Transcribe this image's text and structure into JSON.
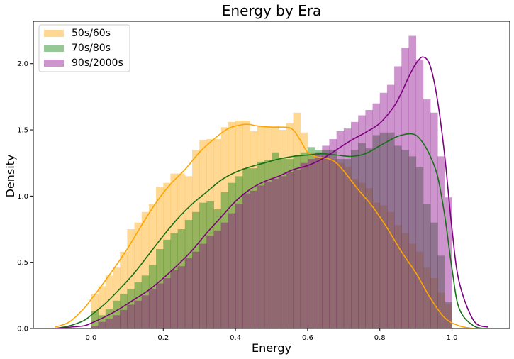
{
  "chart_data": {
    "type": "bar",
    "title": "Energy by Era",
    "xlabel": "Energy",
    "ylabel": "Density",
    "xlim": [
      -0.16,
      1.16
    ],
    "ylim": [
      0,
      2.32
    ],
    "xticks": [
      0.0,
      0.2,
      0.4,
      0.6,
      0.8,
      1.0
    ],
    "xtick_labels": [
      "0.0",
      "0.2",
      "0.4",
      "0.6",
      "0.8",
      "1.0"
    ],
    "yticks": [
      0.0,
      0.5,
      1.0,
      1.5,
      2.0
    ],
    "ytick_labels": [
      "0.0",
      "0.5",
      "1.0",
      "1.5",
      "2.0"
    ],
    "grid": false,
    "legend_position": "top-left",
    "bin_width": 0.02,
    "x_start": 0.0,
    "series": [
      {
        "name": "50s/60s",
        "color": "#ffa500",
        "fill_opacity": 0.42,
        "hist_values": [
          0.26,
          0.32,
          0.4,
          0.46,
          0.58,
          0.75,
          0.8,
          0.88,
          0.94,
          1.07,
          1.1,
          1.17,
          1.17,
          1.15,
          1.35,
          1.42,
          1.43,
          1.43,
          1.52,
          1.56,
          1.57,
          1.57,
          1.49,
          1.53,
          1.53,
          1.53,
          1.5,
          1.55,
          1.63,
          1.48,
          1.33,
          1.3,
          1.3,
          1.28,
          1.25,
          1.22,
          1.13,
          1.1,
          1.06,
          0.95,
          0.93,
          0.88,
          0.78,
          0.72,
          0.64,
          0.58,
          0.46,
          0.38,
          0.27,
          0.18
        ],
        "kde_x": [
          -0.1,
          -0.06,
          -0.02,
          0.0,
          0.02,
          0.06,
          0.1,
          0.14,
          0.18,
          0.22,
          0.26,
          0.3,
          0.34,
          0.38,
          0.42,
          0.44,
          0.46,
          0.5,
          0.54,
          0.56,
          0.58,
          0.6,
          0.62,
          0.64,
          0.66,
          0.68,
          0.7,
          0.74,
          0.78,
          0.82,
          0.86,
          0.9,
          0.94,
          0.98,
          1.02,
          1.06
        ],
        "kde_y": [
          0.01,
          0.05,
          0.15,
          0.22,
          0.29,
          0.44,
          0.6,
          0.78,
          0.95,
          1.09,
          1.2,
          1.33,
          1.43,
          1.51,
          1.54,
          1.54,
          1.53,
          1.52,
          1.52,
          1.5,
          1.42,
          1.33,
          1.3,
          1.29,
          1.28,
          1.25,
          1.19,
          1.05,
          0.92,
          0.76,
          0.58,
          0.42,
          0.23,
          0.08,
          0.02,
          0.0
        ]
      },
      {
        "name": "70s/80s",
        "color": "#228b22",
        "line_color": "#167016",
        "fill_opacity": 0.48,
        "hist_values": [
          0.13,
          0.1,
          0.15,
          0.21,
          0.26,
          0.3,
          0.35,
          0.4,
          0.48,
          0.6,
          0.67,
          0.72,
          0.75,
          0.82,
          0.88,
          0.95,
          0.96,
          0.9,
          1.03,
          1.1,
          1.15,
          1.21,
          1.21,
          1.26,
          1.27,
          1.33,
          1.29,
          1.28,
          1.31,
          1.33,
          1.37,
          1.35,
          1.35,
          1.35,
          1.28,
          1.28,
          1.35,
          1.4,
          1.36,
          1.46,
          1.48,
          1.48,
          1.38,
          1.35,
          1.3,
          1.22,
          0.94,
          0.8,
          0.55,
          0.2
        ],
        "kde_x": [
          -0.1,
          -0.06,
          -0.02,
          0.0,
          0.04,
          0.08,
          0.12,
          0.16,
          0.2,
          0.24,
          0.28,
          0.32,
          0.36,
          0.4,
          0.44,
          0.48,
          0.52,
          0.56,
          0.6,
          0.64,
          0.68,
          0.72,
          0.76,
          0.8,
          0.84,
          0.86,
          0.88,
          0.9,
          0.92,
          0.94,
          0.96,
          0.98,
          1.0,
          1.02,
          1.06,
          1.1
        ],
        "kde_y": [
          0.0,
          0.02,
          0.06,
          0.1,
          0.19,
          0.3,
          0.42,
          0.56,
          0.7,
          0.83,
          0.94,
          1.03,
          1.12,
          1.18,
          1.22,
          1.25,
          1.28,
          1.3,
          1.31,
          1.32,
          1.31,
          1.3,
          1.32,
          1.38,
          1.44,
          1.46,
          1.47,
          1.46,
          1.4,
          1.3,
          1.15,
          0.85,
          0.45,
          0.15,
          0.02,
          0.0
        ]
      },
      {
        "name": "90s/2000s",
        "color": "#8b008b",
        "line_color": "#7d0080",
        "fill_opacity": 0.42,
        "hist_values": [
          0.02,
          0.05,
          0.07,
          0.1,
          0.14,
          0.18,
          0.21,
          0.25,
          0.3,
          0.34,
          0.38,
          0.44,
          0.47,
          0.53,
          0.58,
          0.64,
          0.7,
          0.74,
          0.8,
          0.87,
          0.94,
          1.02,
          1.04,
          1.08,
          1.11,
          1.13,
          1.15,
          1.18,
          1.2,
          1.25,
          1.28,
          1.33,
          1.38,
          1.43,
          1.49,
          1.51,
          1.56,
          1.61,
          1.65,
          1.7,
          1.78,
          1.84,
          1.98,
          2.12,
          2.21,
          2.03,
          1.73,
          1.63,
          1.3,
          0.99
        ],
        "kde_x": [
          -0.1,
          -0.06,
          -0.02,
          0.0,
          0.04,
          0.08,
          0.12,
          0.16,
          0.2,
          0.24,
          0.28,
          0.32,
          0.36,
          0.4,
          0.44,
          0.48,
          0.52,
          0.56,
          0.6,
          0.64,
          0.68,
          0.72,
          0.76,
          0.8,
          0.84,
          0.86,
          0.88,
          0.9,
          0.92,
          0.94,
          0.96,
          0.98,
          1.0,
          1.02,
          1.06,
          1.1
        ],
        "kde_y": [
          0.0,
          0.01,
          0.02,
          0.04,
          0.09,
          0.15,
          0.22,
          0.29,
          0.38,
          0.48,
          0.59,
          0.72,
          0.84,
          0.96,
          1.05,
          1.11,
          1.15,
          1.2,
          1.23,
          1.28,
          1.35,
          1.42,
          1.48,
          1.55,
          1.68,
          1.78,
          1.9,
          2.0,
          2.05,
          1.98,
          1.72,
          1.3,
          0.75,
          0.35,
          0.06,
          0.01
        ]
      }
    ]
  }
}
